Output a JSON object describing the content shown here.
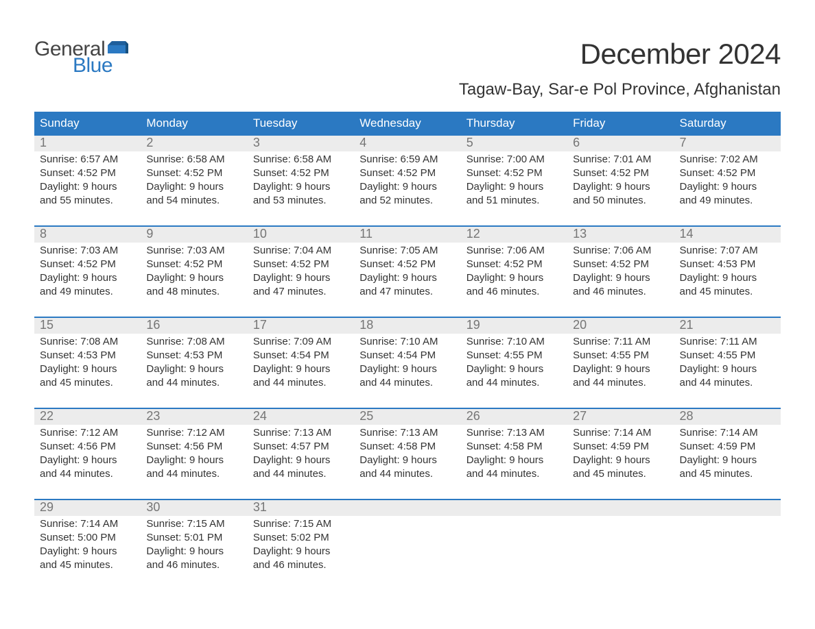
{
  "logo": {
    "line1": "General",
    "line2": "Blue"
  },
  "title": "December 2024",
  "location": "Tagaw-Bay, Sar-e Pol Province, Afghanistan",
  "colors": {
    "header_bg": "#2b79c2",
    "header_text": "#ffffff",
    "daynum_bg": "#ececec",
    "daynum_text": "#757575",
    "body_text": "#333333",
    "logo_gray": "#444444",
    "logo_blue": "#2b79c2",
    "page_bg": "#ffffff"
  },
  "typography": {
    "title_fontsize": 42,
    "location_fontsize": 24,
    "dow_fontsize": 17,
    "daynum_fontsize": 18,
    "detail_fontsize": 15,
    "logo_fontsize": 30
  },
  "dow": [
    "Sunday",
    "Monday",
    "Tuesday",
    "Wednesday",
    "Thursday",
    "Friday",
    "Saturday"
  ],
  "weeks": [
    {
      "nums": [
        "1",
        "2",
        "3",
        "4",
        "5",
        "6",
        "7"
      ],
      "details": [
        "Sunrise: 6:57 AM\nSunset: 4:52 PM\nDaylight: 9 hours and 55 minutes.",
        "Sunrise: 6:58 AM\nSunset: 4:52 PM\nDaylight: 9 hours and 54 minutes.",
        "Sunrise: 6:58 AM\nSunset: 4:52 PM\nDaylight: 9 hours and 53 minutes.",
        "Sunrise: 6:59 AM\nSunset: 4:52 PM\nDaylight: 9 hours and 52 minutes.",
        "Sunrise: 7:00 AM\nSunset: 4:52 PM\nDaylight: 9 hours and 51 minutes.",
        "Sunrise: 7:01 AM\nSunset: 4:52 PM\nDaylight: 9 hours and 50 minutes.",
        "Sunrise: 7:02 AM\nSunset: 4:52 PM\nDaylight: 9 hours and 49 minutes."
      ]
    },
    {
      "nums": [
        "8",
        "9",
        "10",
        "11",
        "12",
        "13",
        "14"
      ],
      "details": [
        "Sunrise: 7:03 AM\nSunset: 4:52 PM\nDaylight: 9 hours and 49 minutes.",
        "Sunrise: 7:03 AM\nSunset: 4:52 PM\nDaylight: 9 hours and 48 minutes.",
        "Sunrise: 7:04 AM\nSunset: 4:52 PM\nDaylight: 9 hours and 47 minutes.",
        "Sunrise: 7:05 AM\nSunset: 4:52 PM\nDaylight: 9 hours and 47 minutes.",
        "Sunrise: 7:06 AM\nSunset: 4:52 PM\nDaylight: 9 hours and 46 minutes.",
        "Sunrise: 7:06 AM\nSunset: 4:52 PM\nDaylight: 9 hours and 46 minutes.",
        "Sunrise: 7:07 AM\nSunset: 4:53 PM\nDaylight: 9 hours and 45 minutes."
      ]
    },
    {
      "nums": [
        "15",
        "16",
        "17",
        "18",
        "19",
        "20",
        "21"
      ],
      "details": [
        "Sunrise: 7:08 AM\nSunset: 4:53 PM\nDaylight: 9 hours and 45 minutes.",
        "Sunrise: 7:08 AM\nSunset: 4:53 PM\nDaylight: 9 hours and 44 minutes.",
        "Sunrise: 7:09 AM\nSunset: 4:54 PM\nDaylight: 9 hours and 44 minutes.",
        "Sunrise: 7:10 AM\nSunset: 4:54 PM\nDaylight: 9 hours and 44 minutes.",
        "Sunrise: 7:10 AM\nSunset: 4:55 PM\nDaylight: 9 hours and 44 minutes.",
        "Sunrise: 7:11 AM\nSunset: 4:55 PM\nDaylight: 9 hours and 44 minutes.",
        "Sunrise: 7:11 AM\nSunset: 4:55 PM\nDaylight: 9 hours and 44 minutes."
      ]
    },
    {
      "nums": [
        "22",
        "23",
        "24",
        "25",
        "26",
        "27",
        "28"
      ],
      "details": [
        "Sunrise: 7:12 AM\nSunset: 4:56 PM\nDaylight: 9 hours and 44 minutes.",
        "Sunrise: 7:12 AM\nSunset: 4:56 PM\nDaylight: 9 hours and 44 minutes.",
        "Sunrise: 7:13 AM\nSunset: 4:57 PM\nDaylight: 9 hours and 44 minutes.",
        "Sunrise: 7:13 AM\nSunset: 4:58 PM\nDaylight: 9 hours and 44 minutes.",
        "Sunrise: 7:13 AM\nSunset: 4:58 PM\nDaylight: 9 hours and 44 minutes.",
        "Sunrise: 7:14 AM\nSunset: 4:59 PM\nDaylight: 9 hours and 45 minutes.",
        "Sunrise: 7:14 AM\nSunset: 4:59 PM\nDaylight: 9 hours and 45 minutes."
      ]
    },
    {
      "nums": [
        "29",
        "30",
        "31",
        "",
        "",
        "",
        ""
      ],
      "details": [
        "Sunrise: 7:14 AM\nSunset: 5:00 PM\nDaylight: 9 hours and 45 minutes.",
        "Sunrise: 7:15 AM\nSunset: 5:01 PM\nDaylight: 9 hours and 46 minutes.",
        "Sunrise: 7:15 AM\nSunset: 5:02 PM\nDaylight: 9 hours and 46 minutes.",
        "",
        "",
        "",
        ""
      ]
    }
  ]
}
